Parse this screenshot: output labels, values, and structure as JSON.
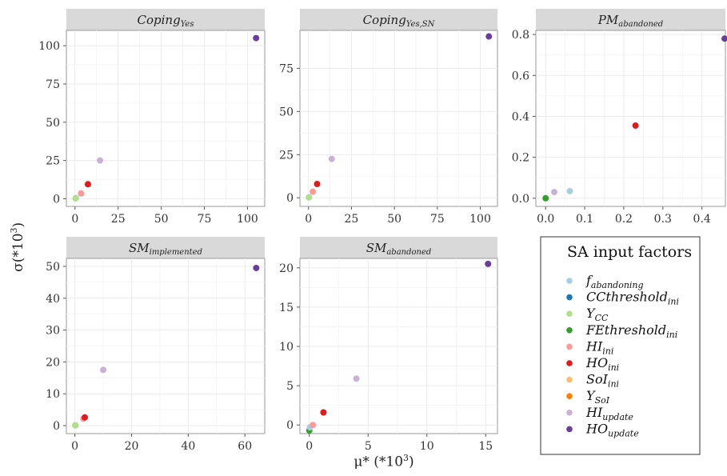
{
  "figure": {
    "y_label_main": "σ(*10",
    "y_label_sup": "3",
    "y_label_close": ")",
    "x_label_main": "μ* (*10",
    "x_label_sup": "3",
    "x_label_close": ")"
  },
  "legend": {
    "title": "SA input factors",
    "items": [
      {
        "base": "f",
        "sub": "abandoning",
        "color": "#a6cee3"
      },
      {
        "base": "CCthreshold",
        "sub": "ini",
        "color": "#1f78b4"
      },
      {
        "base": "Y",
        "sub": "CC",
        "color": "#b2df8a"
      },
      {
        "base": "FEthreshold",
        "sub": "ini",
        "color": "#33a02c"
      },
      {
        "base": "HI",
        "sub": "ini",
        "color": "#fb9a99"
      },
      {
        "base": "HO",
        "sub": "ini",
        "color": "#e31a1c"
      },
      {
        "base": "SoI",
        "sub": "ini",
        "color": "#fdbf6f"
      },
      {
        "base": "Y",
        "sub": "SoI",
        "color": "#ff7f00"
      },
      {
        "base": "HI",
        "sub": "update",
        "color": "#cab2d6"
      },
      {
        "base": "HO",
        "sub": "update",
        "color": "#6a3d9a"
      }
    ]
  },
  "chart_data": [
    {
      "type": "scatter",
      "title": "Coping",
      "title_sub": "Yes",
      "xlim": [
        -5,
        110
      ],
      "ylim": [
        -5,
        110
      ],
      "xticks": [
        0,
        25,
        50,
        75,
        100
      ],
      "yticks": [
        0,
        25,
        50,
        75,
        100
      ],
      "xtick_labels": [
        "0",
        "25",
        "50",
        "75",
        "100"
      ],
      "ytick_labels": [
        "0",
        "25",
        "50",
        "75",
        "100"
      ],
      "points": [
        {
          "factor": "f_abandoning",
          "x": 0.5,
          "y": 0.5,
          "color": "#a6cee3"
        },
        {
          "factor": "Y_CC",
          "x": 0.3,
          "y": 0.2,
          "color": "#b2df8a"
        },
        {
          "factor": "HI_ini",
          "x": 3.5,
          "y": 3.5,
          "color": "#fb9a99"
        },
        {
          "factor": "HO_ini",
          "x": 7.5,
          "y": 9.5,
          "color": "#e31a1c"
        },
        {
          "factor": "HI_update",
          "x": 14.5,
          "y": 25,
          "color": "#cab2d6"
        },
        {
          "factor": "HO_update",
          "x": 105,
          "y": 105,
          "color": "#6a3d9a"
        }
      ]
    },
    {
      "type": "scatter",
      "title": "Coping",
      "title_sub": "Yes,SN",
      "xlim": [
        -5,
        110
      ],
      "ylim": [
        -5,
        97
      ],
      "xticks": [
        0,
        25,
        50,
        75,
        100
      ],
      "yticks": [
        0,
        25,
        50,
        75
      ],
      "xtick_labels": [
        "0",
        "25",
        "50",
        "75",
        "100"
      ],
      "ytick_labels": [
        "0",
        "25",
        "50",
        "75"
      ],
      "points": [
        {
          "factor": "f_abandoning",
          "x": 0.3,
          "y": 0.3,
          "color": "#a6cee3"
        },
        {
          "factor": "Y_CC",
          "x": 0.2,
          "y": 0.2,
          "color": "#b2df8a"
        },
        {
          "factor": "HI_ini",
          "x": 2.5,
          "y": 3.5,
          "color": "#fb9a99"
        },
        {
          "factor": "HO_ini",
          "x": 5,
          "y": 8,
          "color": "#e31a1c"
        },
        {
          "factor": "HI_update",
          "x": 13.5,
          "y": 22.5,
          "color": "#cab2d6"
        },
        {
          "factor": "HO_update",
          "x": 105,
          "y": 93.5,
          "color": "#6a3d9a"
        }
      ]
    },
    {
      "type": "scatter",
      "title": "PM",
      "title_sub": "abandoned",
      "xlim": [
        -0.025,
        0.46
      ],
      "ylim": [
        -0.04,
        0.82
      ],
      "xticks": [
        0,
        0.1,
        0.2,
        0.3,
        0.4
      ],
      "yticks": [
        0,
        0.2,
        0.4,
        0.6,
        0.8
      ],
      "xtick_labels": [
        "0.0",
        "0.1",
        "0.2",
        "0.3",
        "0.4"
      ],
      "ytick_labels": [
        "0.0",
        "0.2",
        "0.4",
        "0.6",
        "0.8"
      ],
      "points": [
        {
          "factor": "FEthreshold_ini",
          "x": 0.0,
          "y": 0.0,
          "color": "#33a02c"
        },
        {
          "factor": "HI_update",
          "x": 0.022,
          "y": 0.03,
          "color": "#cab2d6"
        },
        {
          "factor": "f_abandoning",
          "x": 0.062,
          "y": 0.035,
          "color": "#a6cee3"
        },
        {
          "factor": "HO_ini",
          "x": 0.23,
          "y": 0.355,
          "color": "#e31a1c"
        },
        {
          "factor": "HO_update",
          "x": 0.458,
          "y": 0.78,
          "color": "#6a3d9a"
        }
      ]
    },
    {
      "type": "scatter",
      "title": "SM",
      "title_sub": "implemented",
      "xlim": [
        -3,
        67
      ],
      "ylim": [
        -2.5,
        52.5
      ],
      "xticks": [
        0,
        20,
        40,
        60
      ],
      "yticks": [
        0,
        10,
        20,
        30,
        40,
        50
      ],
      "xtick_labels": [
        "0",
        "20",
        "40",
        "60"
      ],
      "ytick_labels": [
        "0",
        "10",
        "20",
        "30",
        "40",
        "50"
      ],
      "points": [
        {
          "factor": "f_abandoning",
          "x": 0.2,
          "y": 0.1,
          "color": "#a6cee3"
        },
        {
          "factor": "Y_CC",
          "x": 0.1,
          "y": 0.1,
          "color": "#b2df8a"
        },
        {
          "factor": "HI_ini",
          "x": 3.0,
          "y": 2.2,
          "color": "#fb9a99"
        },
        {
          "factor": "HO_ini",
          "x": 3.5,
          "y": 2.6,
          "color": "#e31a1c"
        },
        {
          "factor": "HI_update",
          "x": 10,
          "y": 17.5,
          "color": "#cab2d6"
        },
        {
          "factor": "HO_update",
          "x": 64,
          "y": 49.5,
          "color": "#6a3d9a"
        }
      ]
    },
    {
      "type": "scatter",
      "title": "SM",
      "title_sub": "abandoned",
      "xlim": [
        -0.8,
        16
      ],
      "ylim": [
        -1.1,
        21.2
      ],
      "xticks": [
        0,
        5,
        10,
        15
      ],
      "yticks": [
        0,
        5,
        10,
        15,
        20
      ],
      "xtick_labels": [
        "0",
        "5",
        "10",
        "15"
      ],
      "ytick_labels": [
        "0",
        "5",
        "10",
        "15",
        "20"
      ],
      "points": [
        {
          "factor": "FEthreshold_ini",
          "x": 0.0,
          "y": -0.7,
          "color": "#33a02c"
        },
        {
          "factor": "f_abandoning",
          "x": 0.05,
          "y": -0.3,
          "color": "#a6cee3"
        },
        {
          "factor": "HI_ini",
          "x": 0.3,
          "y": 0.0,
          "color": "#fb9a99"
        },
        {
          "factor": "HO_ini",
          "x": 1.2,
          "y": 1.6,
          "color": "#e31a1c"
        },
        {
          "factor": "HI_update",
          "x": 4.0,
          "y": 5.9,
          "color": "#cab2d6"
        },
        {
          "factor": "HO_update",
          "x": 15.2,
          "y": 20.5,
          "color": "#6a3d9a"
        }
      ]
    }
  ]
}
